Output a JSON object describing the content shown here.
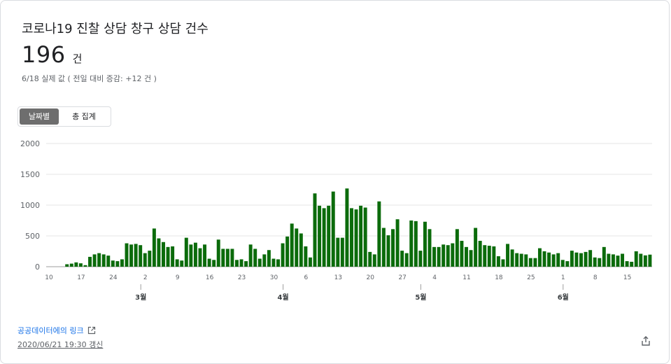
{
  "header": {
    "title": "코로나19 진찰 상담 창구 상담 건수",
    "value": "196",
    "unit": "건",
    "subline": "6/18 실제 값 ( 전일 대비 증감: +12 건 )"
  },
  "toggle": {
    "daily_label": "날짜별",
    "total_label": "총 집계"
  },
  "footer": {
    "link_label": "공공데이터에의 링크",
    "updated": "2020/06/21 19:30 갱신"
  },
  "icons": {
    "external_link": "external-link-icon",
    "share": "share-icon"
  },
  "colors": {
    "bar": "#0b6b0b",
    "grid": "#e6e6e6"
  },
  "chart_data": {
    "type": "bar",
    "ylim": [
      0,
      2000
    ],
    "yticks": [
      "0",
      "500",
      "1000",
      "1500",
      "2000"
    ],
    "grid": true,
    "x_tick_labels": [
      "10",
      "17",
      "24",
      "2",
      "9",
      "16",
      "23",
      "30",
      "6",
      "13",
      "20",
      "27",
      "4",
      "11",
      "18",
      "25",
      "1",
      "8",
      "15"
    ],
    "month_labels": [
      "3월",
      "4월",
      "5월",
      "6월"
    ],
    "date_range": [
      "2020-02-10",
      "2020-06-18"
    ],
    "values": [
      0,
      0,
      0,
      0,
      40,
      50,
      70,
      55,
      25,
      160,
      200,
      220,
      200,
      180,
      100,
      90,
      120,
      380,
      360,
      370,
      350,
      220,
      260,
      620,
      460,
      400,
      320,
      330,
      120,
      100,
      470,
      360,
      390,
      300,
      360,
      130,
      110,
      440,
      290,
      290,
      290,
      110,
      120,
      90,
      360,
      290,
      130,
      200,
      270,
      130,
      120,
      380,
      490,
      700,
      620,
      540,
      330,
      150,
      1190,
      990,
      950,
      990,
      1220,
      470,
      470,
      1270,
      950,
      930,
      990,
      960,
      240,
      200,
      1060,
      630,
      510,
      610,
      770,
      260,
      220,
      750,
      740,
      260,
      730,
      610,
      320,
      320,
      360,
      350,
      380,
      610,
      420,
      320,
      270,
      630,
      420,
      350,
      340,
      330,
      170,
      120,
      370,
      280,
      220,
      210,
      200,
      140,
      140,
      300,
      250,
      230,
      200,
      220,
      110,
      90,
      260,
      230,
      220,
      240,
      270,
      150,
      140,
      320,
      210,
      200,
      180,
      210,
      90,
      80,
      250,
      210,
      184,
      196
    ]
  }
}
